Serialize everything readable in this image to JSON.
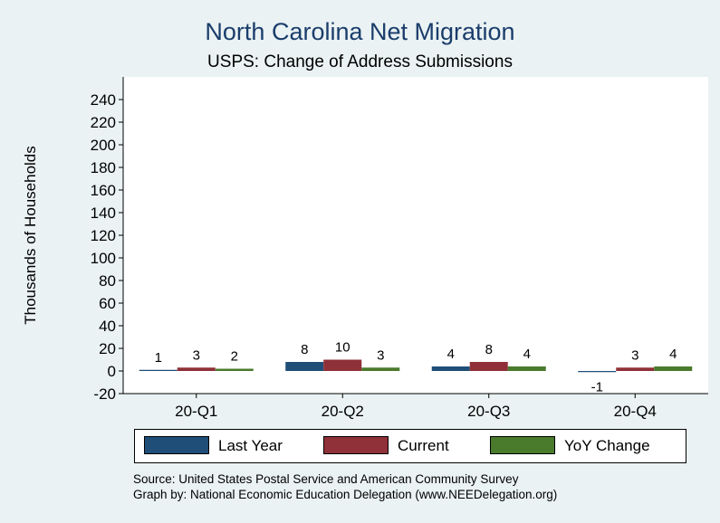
{
  "chart_data": {
    "type": "bar",
    "title": "North Carolina Net Migration",
    "subtitle": "USPS: Change of Address Submissions",
    "ylabel": "Thousands of Households",
    "xlabel": "",
    "categories": [
      "20-Q1",
      "20-Q2",
      "20-Q3",
      "20-Q4"
    ],
    "series": [
      {
        "name": "Last Year",
        "color": "#1f4e79",
        "values": [
          1,
          8,
          4,
          -1
        ],
        "labels": [
          "1",
          "8",
          "4",
          "-1"
        ]
      },
      {
        "name": "Current",
        "color": "#903038",
        "values": [
          3,
          10,
          8,
          3
        ],
        "labels": [
          "3",
          "10",
          "8",
          "3"
        ]
      },
      {
        "name": "YoY Change",
        "color": "#4a7a2c",
        "values": [
          2,
          3,
          4,
          4
        ],
        "labels": [
          "2",
          "3",
          "4",
          "4"
        ]
      }
    ],
    "ylim": [
      -20,
      240
    ],
    "yticks": [
      -20,
      0,
      20,
      40,
      60,
      80,
      100,
      120,
      140,
      160,
      180,
      200,
      220,
      240
    ],
    "legend": "bottom",
    "grid": false
  },
  "source_lines": [
    "Source: United States Postal Service and American Community Survey",
    "Graph by: National Economic Education Delegation (www.NEEDelegation.org)"
  ]
}
